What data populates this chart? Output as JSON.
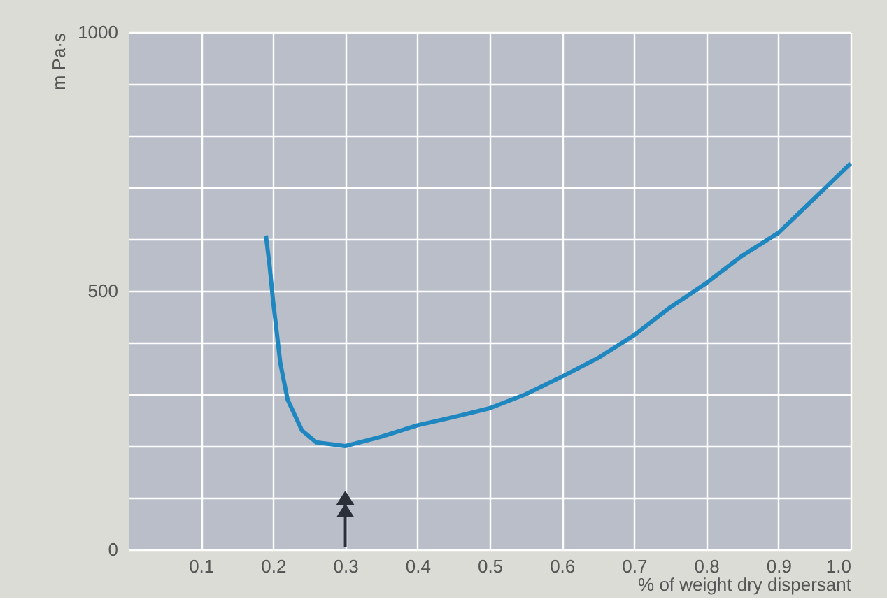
{
  "chart_data": {
    "type": "line",
    "ylabel": "m Pa·s",
    "xlabel": "% of weight dry dispersant",
    "xlim": [
      0,
      1.0
    ],
    "xticks": [
      0.1,
      0.2,
      0.3,
      0.4,
      0.5,
      0.6,
      0.7,
      0.8,
      0.9,
      {
        "value": 1.0,
        "label": "1.0"
      }
    ],
    "ylim": [
      0,
      1000
    ],
    "yticks": [
      0,
      {
        "value": 100,
        "label": null
      },
      {
        "value": 200,
        "label": null
      },
      {
        "value": 300,
        "label": null
      },
      {
        "value": 400,
        "label": null
      },
      500,
      {
        "value": 600,
        "label": null
      },
      {
        "value": 700,
        "label": null
      },
      {
        "value": 800,
        "label": null
      },
      {
        "value": 900,
        "label": null
      },
      1000
    ],
    "grid": true,
    "series": [
      {
        "color": "#1f87c0",
        "x": [
          0.19,
          0.195,
          0.2,
          0.21,
          0.22,
          0.24,
          0.26,
          0.3,
          0.35,
          0.4,
          0.45,
          0.5,
          0.55,
          0.6,
          0.65,
          0.7,
          0.75,
          0.8,
          0.85,
          0.9,
          1.0
        ],
        "values": [
          607,
          550,
          480,
          360,
          290,
          230,
          207,
          200,
          218,
          240,
          256,
          273,
          300,
          334,
          370,
          414,
          468,
          515,
          568,
          612,
          746
        ]
      }
    ]
  }
}
